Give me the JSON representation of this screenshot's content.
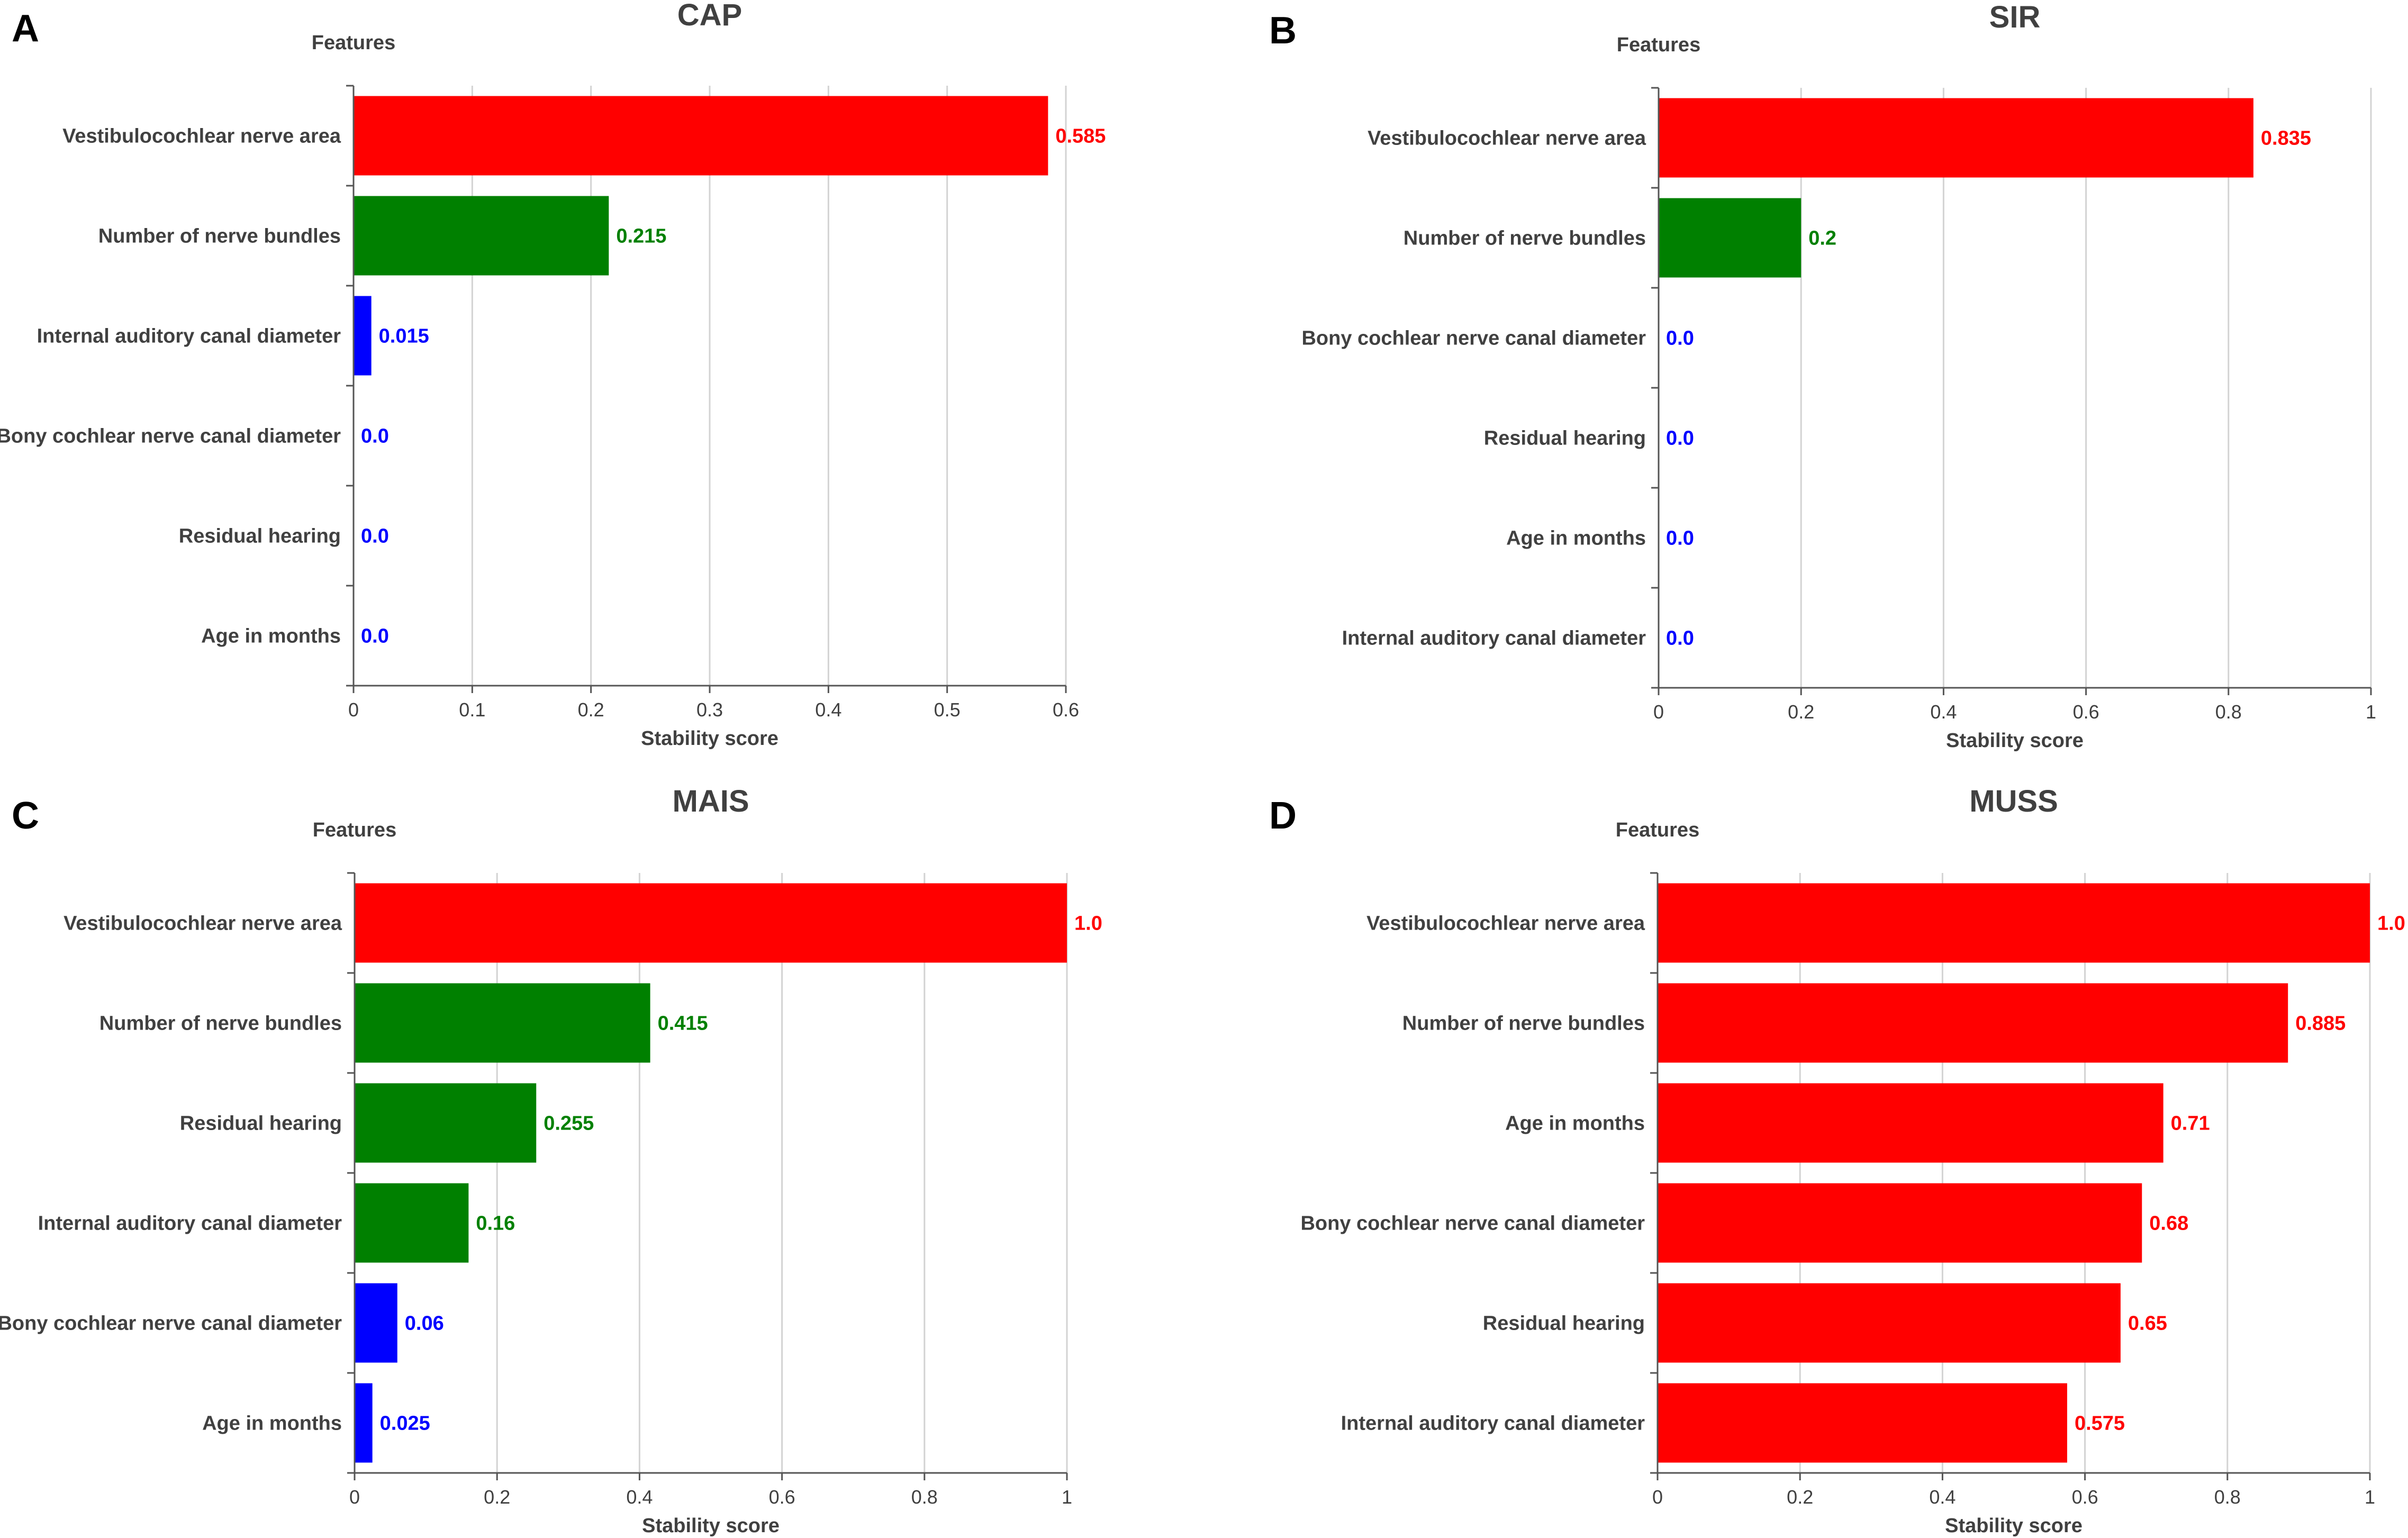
{
  "colors": {
    "red": "#ff0000",
    "green": "#008000",
    "blue": "#0000ff",
    "text": "#404040"
  },
  "chart_data": [
    {
      "type": "bar",
      "panel": "A",
      "title": "CAP",
      "ylabel": "Features",
      "xlabel": "Stability score",
      "xlim": [
        0,
        0.6
      ],
      "ticks": [
        0,
        0.1,
        0.2,
        0.3,
        0.4,
        0.5,
        0.6
      ],
      "tick_labels": [
        "0",
        "0.1",
        "0.2",
        "0.3",
        "0.4",
        "0.5",
        "0.6"
      ],
      "categories": [
        "Vestibulocochlear nerve area",
        "Number of nerve bundles",
        "Internal auditory canal diameter",
        "Bony cochlear nerve canal diameter",
        "Residual hearing",
        "Age in months"
      ],
      "values": [
        0.585,
        0.215,
        0.015,
        0.0,
        0.0,
        0.0
      ],
      "value_labels": [
        "0.585",
        "0.215",
        "0.015",
        "0.0",
        "0.0",
        "0.0"
      ],
      "bar_colors": [
        "red",
        "green",
        "blue",
        "blue",
        "blue",
        "blue"
      ]
    },
    {
      "type": "bar",
      "panel": "B",
      "title": "SIR",
      "ylabel": "Features",
      "xlabel": "Stability score",
      "xlim": [
        0,
        1
      ],
      "ticks": [
        0,
        0.2,
        0.4,
        0.6,
        0.8,
        1
      ],
      "tick_labels": [
        "0",
        "0.2",
        "0.4",
        "0.6",
        "0.8",
        "1"
      ],
      "categories": [
        "Vestibulocochlear nerve area",
        "Number of nerve bundles",
        "Bony cochlear nerve canal diameter",
        "Residual hearing",
        "Age in months",
        "Internal auditory canal diameter"
      ],
      "values": [
        0.835,
        0.2,
        0.0,
        0.0,
        0.0,
        0.0
      ],
      "value_labels": [
        "0.835",
        "0.2",
        "0.0",
        "0.0",
        "0.0",
        "0.0"
      ],
      "bar_colors": [
        "red",
        "green",
        "blue",
        "blue",
        "blue",
        "blue"
      ]
    },
    {
      "type": "bar",
      "panel": "C",
      "title": "MAIS",
      "ylabel": "Features",
      "xlabel": "Stability score",
      "xlim": [
        0,
        1
      ],
      "ticks": [
        0,
        0.2,
        0.4,
        0.6,
        0.8,
        1
      ],
      "tick_labels": [
        "0",
        "0.2",
        "0.4",
        "0.6",
        "0.8",
        "1"
      ],
      "categories": [
        "Vestibulocochlear nerve area",
        "Number of nerve bundles",
        "Residual hearing",
        "Internal auditory canal diameter",
        "Bony cochlear nerve canal diameter",
        "Age in months"
      ],
      "values": [
        1.0,
        0.415,
        0.255,
        0.16,
        0.06,
        0.025
      ],
      "value_labels": [
        "1.0",
        "0.415",
        "0.255",
        "0.16",
        "0.06",
        "0.025"
      ],
      "bar_colors": [
        "red",
        "green",
        "green",
        "green",
        "blue",
        "blue"
      ]
    },
    {
      "type": "bar",
      "panel": "D",
      "title": "MUSS",
      "ylabel": "Features",
      "xlabel": "Stability score",
      "xlim": [
        0,
        1
      ],
      "ticks": [
        0,
        0.2,
        0.4,
        0.6,
        0.8,
        1
      ],
      "tick_labels": [
        "0",
        "0.2",
        "0.4",
        "0.6",
        "0.8",
        "1"
      ],
      "categories": [
        "Vestibulocochlear nerve area",
        "Number of nerve bundles",
        "Age in months",
        "Bony cochlear nerve canal diameter",
        "Residual hearing",
        "Internal auditory canal diameter"
      ],
      "values": [
        1.0,
        0.885,
        0.71,
        0.68,
        0.65,
        0.575
      ],
      "value_labels": [
        "1.0",
        "0.885",
        "0.71",
        "0.68",
        "0.65",
        "0.575"
      ],
      "bar_colors": [
        "red",
        "red",
        "red",
        "red",
        "red",
        "red"
      ]
    }
  ]
}
